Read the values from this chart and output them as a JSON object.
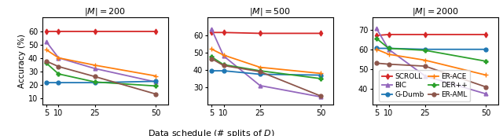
{
  "x": [
    5,
    10,
    25,
    50
  ],
  "panels": [
    {
      "title": "$|M| = 200$",
      "series": {
        "SCROLL": [
          60.0,
          60.0,
          60.0,
          60.0
        ],
        "G-Dumb": [
          21.5,
          21.5,
          21.5,
          22.5
        ],
        "DER++": [
          36.0,
          28.0,
          22.0,
          19.0
        ],
        "BIC": [
          52.0,
          40.0,
          32.0,
          22.0
        ],
        "ER-ACE": [
          46.0,
          40.0,
          34.5,
          26.5
        ],
        "ER-AML": [
          37.5,
          33.5,
          26.0,
          13.0
        ]
      },
      "ylim": [
        5,
        70
      ],
      "yticks": [
        10,
        20,
        30,
        40,
        50,
        60
      ]
    },
    {
      "title": "$|M| = 500$",
      "series": {
        "SCROLL": [
          61.5,
          61.5,
          61.0,
          61.0
        ],
        "G-Dumb": [
          39.5,
          39.5,
          37.5,
          37.0
        ],
        "DER++": [
          47.5,
          43.0,
          39.5,
          35.0
        ],
        "BIC": [
          63.5,
          48.0,
          31.0,
          24.5
        ],
        "ER-ACE": [
          52.0,
          48.5,
          41.5,
          38.0
        ],
        "ER-AML": [
          46.5,
          42.5,
          39.0,
          25.0
        ]
      },
      "ylim": [
        20,
        70
      ],
      "yticks": [
        30,
        40,
        50,
        60
      ]
    },
    {
      "title": "$|M| = 2000$",
      "series": {
        "SCROLL": [
          67.0,
          67.5,
          67.5,
          67.5
        ],
        "G-Dumb": [
          60.5,
          60.5,
          60.0,
          60.0
        ],
        "DER++": [
          65.5,
          60.5,
          59.5,
          54.0
        ],
        "BIC": [
          70.5,
          60.0,
          46.5,
          37.5
        ],
        "ER-ACE": [
          60.0,
          57.5,
          54.5,
          47.0
        ],
        "ER-AML": [
          53.0,
          52.5,
          51.5,
          41.0
        ]
      },
      "ylim": [
        32,
        76
      ],
      "yticks": [
        40,
        50,
        60,
        70
      ]
    }
  ],
  "series_styles": {
    "SCROLL": {
      "color": "#d62728",
      "marker": "d",
      "markersize": 3.5,
      "lw": 1.3
    },
    "G-Dumb": {
      "color": "#1f77b4",
      "marker": "o",
      "markersize": 3.5,
      "lw": 1.3
    },
    "DER++": {
      "color": "#2ca02c",
      "marker": "P",
      "markersize": 3.5,
      "lw": 1.3
    },
    "BIC": {
      "color": "#9467bd",
      "marker": "^",
      "markersize": 3.5,
      "lw": 1.3
    },
    "ER-ACE": {
      "color": "#ff7f0e",
      "marker": "+",
      "markersize": 5.0,
      "lw": 1.3
    },
    "ER-AML": {
      "color": "#8c564b",
      "marker": "o",
      "markersize": 3.5,
      "lw": 1.3
    }
  },
  "xlabel": "Data schedule (# splits of $D$)",
  "ylabel": "Accuracy (%)",
  "legend_order": [
    "SCROLL",
    "BIC",
    "G-Dumb",
    "ER-ACE",
    "DER++",
    "ER-AML"
  ]
}
